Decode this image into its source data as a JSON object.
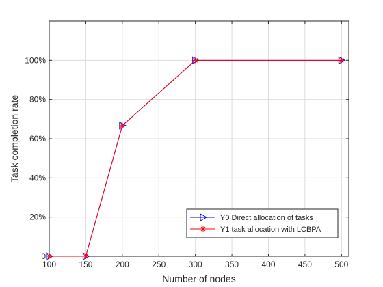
{
  "chart_data": {
    "type": "line",
    "title": "",
    "xlabel": "Number of nodes",
    "ylabel": "Task completion rate",
    "xlim": [
      100,
      510
    ],
    "ylim": [
      0,
      1.2
    ],
    "xticks": [
      100,
      150,
      200,
      250,
      300,
      350,
      400,
      450,
      500
    ],
    "xtick_labels": [
      "100",
      "150",
      "200",
      "250",
      "300",
      "350",
      "400",
      "450",
      "500"
    ],
    "yticks": [
      0,
      0.2,
      0.4,
      0.6,
      0.8,
      1.0
    ],
    "ytick_labels": [
      "0",
      "20%",
      "40%",
      "60%",
      "80%",
      "100%"
    ],
    "grid": true,
    "legend_position": "bottom-right",
    "x": [
      100,
      150,
      200,
      300,
      500
    ],
    "series": [
      {
        "name": "Y0 Direct allocation of tasks",
        "values": [
          0,
          0,
          0.667,
          1.0,
          1.0
        ],
        "color": "#0000ff",
        "marker": "triangle-right"
      },
      {
        "name": "Y1 task allocation with LCBPA",
        "values": [
          0,
          0,
          0.667,
          1.0,
          1.0
        ],
        "color": "#ff0000",
        "marker": "asterisk"
      }
    ]
  }
}
